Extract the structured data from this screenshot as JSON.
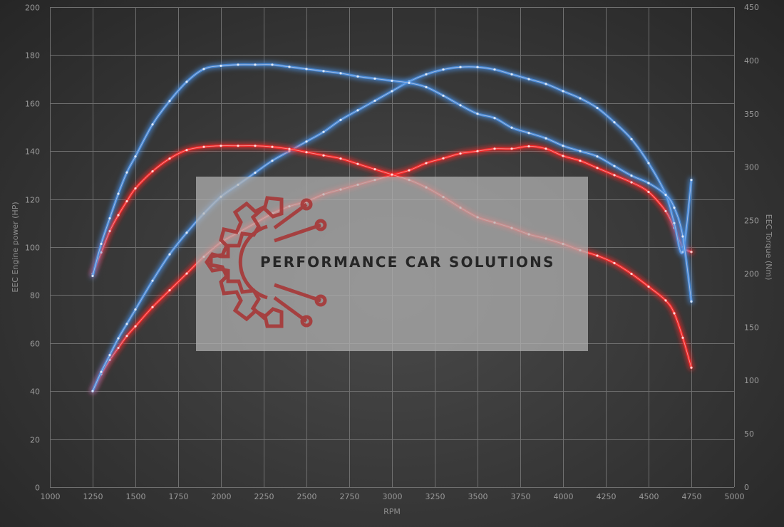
{
  "chart_data": {
    "type": "line",
    "xlabel": "RPM",
    "ylabel_left": "EEC Engine power (HP)",
    "ylabel_right": "EEC Torque (Nm)",
    "xlim": [
      1000,
      5000
    ],
    "x_ticks": [
      "1000",
      "1250",
      "1500",
      "1750",
      "2000",
      "2250",
      "2500",
      "2750",
      "3000",
      "3250",
      "3500",
      "3750",
      "4000",
      "4250",
      "4500",
      "4750",
      "5000"
    ],
    "ylim_left": [
      0,
      200
    ],
    "y_ticks_left": [
      "0",
      "20",
      "40",
      "60",
      "80",
      "100",
      "120",
      "140",
      "160",
      "180",
      "200"
    ],
    "ylim_right": [
      0,
      450
    ],
    "y_ticks_right": [
      "0",
      "50",
      "100",
      "150",
      "200",
      "250",
      "300",
      "350",
      "400",
      "450"
    ],
    "grid": true,
    "series": [
      {
        "axis": "left",
        "color": "#ff2a2a",
        "x": [
          1250,
          1300,
          1350,
          1400,
          1450,
          1500,
          1600,
          1700,
          1800,
          1900,
          2000,
          2100,
          2200,
          2300,
          2400,
          2500,
          2600,
          2700,
          2800,
          2900,
          3000,
          3100,
          3200,
          3300,
          3400,
          3500,
          3600,
          3700,
          3800,
          3900,
          4000,
          4100,
          4200,
          4300,
          4400,
          4500,
          4600,
          4650,
          4700,
          4750
        ],
        "values": [
          40,
          47,
          53,
          58,
          63,
          67,
          75,
          82,
          89,
          96,
          102,
          106,
          110,
          114,
          117,
          119,
          122,
          124,
          126,
          128,
          130,
          132,
          135,
          137,
          139,
          140,
          141,
          141,
          142,
          141,
          138,
          136,
          133,
          130,
          127,
          123,
          115,
          108,
          100,
          98
        ]
      },
      {
        "axis": "left",
        "color": "#4a90e2",
        "x": [
          1250,
          1300,
          1350,
          1400,
          1450,
          1500,
          1600,
          1700,
          1800,
          1900,
          2000,
          2100,
          2200,
          2300,
          2400,
          2500,
          2600,
          2700,
          2800,
          2900,
          3000,
          3100,
          3200,
          3300,
          3400,
          3500,
          3600,
          3700,
          3800,
          3900,
          4000,
          4100,
          4200,
          4300,
          4400,
          4500,
          4600,
          4650,
          4700,
          4750
        ],
        "values": [
          40,
          48,
          55,
          62,
          68,
          74,
          86,
          97,
          106,
          114,
          121,
          126,
          131,
          136,
          140,
          144,
          148,
          153,
          157,
          161,
          165,
          169,
          172,
          174,
          175,
          175,
          174,
          172,
          170,
          168,
          165,
          162,
          158,
          152,
          145,
          135,
          122,
          110,
          98,
          128
        ]
      },
      {
        "axis": "right",
        "color": "#ff2a2a",
        "x": [
          1250,
          1300,
          1350,
          1400,
          1450,
          1500,
          1600,
          1700,
          1800,
          1900,
          2000,
          2100,
          2200,
          2300,
          2400,
          2500,
          2600,
          2700,
          2800,
          2900,
          3000,
          3100,
          3200,
          3300,
          3400,
          3500,
          3600,
          3700,
          3800,
          3900,
          4000,
          4100,
          4200,
          4300,
          4400,
          4500,
          4600,
          4650,
          4700,
          4750
        ],
        "values": [
          200,
          220,
          240,
          255,
          268,
          280,
          296,
          308,
          316,
          319,
          320,
          320,
          320,
          319,
          317,
          314,
          311,
          308,
          303,
          298,
          293,
          288,
          281,
          272,
          262,
          253,
          248,
          243,
          237,
          233,
          228,
          222,
          217,
          210,
          200,
          188,
          175,
          163,
          140,
          112
        ]
      },
      {
        "axis": "right",
        "color": "#4a90e2",
        "x": [
          1250,
          1300,
          1350,
          1400,
          1450,
          1500,
          1600,
          1700,
          1800,
          1900,
          2000,
          2100,
          2200,
          2300,
          2400,
          2500,
          2600,
          2700,
          2800,
          2900,
          3000,
          3100,
          3200,
          3300,
          3400,
          3500,
          3600,
          3700,
          3800,
          3900,
          4000,
          4100,
          4200,
          4300,
          4400,
          4500,
          4600,
          4650,
          4700,
          4750
        ],
        "values": [
          198,
          228,
          252,
          275,
          295,
          310,
          340,
          362,
          380,
          392,
          395,
          396,
          396,
          396,
          394,
          392,
          390,
          388,
          385,
          383,
          381,
          379,
          375,
          367,
          358,
          350,
          346,
          337,
          332,
          327,
          320,
          315,
          310,
          301,
          292,
          285,
          274,
          262,
          235,
          174
        ]
      }
    ]
  },
  "watermark": {
    "text": "PERFORMANCE CAR SOLUTIONS",
    "logo_color": "#a83232",
    "text_color": "#262626",
    "box_color": "#b4b4b4"
  }
}
